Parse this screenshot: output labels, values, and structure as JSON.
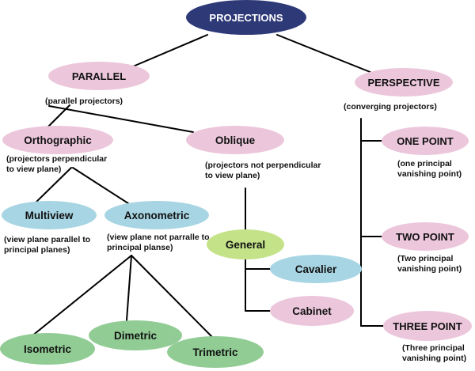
{
  "colors": {
    "root": "#2e3a78",
    "pink": "#ecc7dc",
    "blue": "#a7d5e3",
    "green": "#91cc95",
    "lime": "#c4e389",
    "text_dark": "#111111",
    "text_light": "#ffffff",
    "line": "#000000"
  },
  "nodes": {
    "root": {
      "label": "PROJECTIONS"
    },
    "parallel": {
      "label": "PARALLEL",
      "note": "(parallel projectors)"
    },
    "perspective": {
      "label": "PERSPECTIVE",
      "note": "(converging projectors)"
    },
    "orthographic": {
      "label": "Orthographic",
      "note": [
        "(projectors perpendicular",
        "to view plane)"
      ]
    },
    "oblique": {
      "label": "Oblique",
      "note": [
        "(projectors not perpendicular",
        "to view plane)"
      ]
    },
    "multiview": {
      "label": "Multiview",
      "note": [
        "(view plane parallel to",
        "principal planes)"
      ]
    },
    "axonometric": {
      "label": "Axonometric",
      "note": [
        "(view plane not parralle to",
        "principal planse)"
      ]
    },
    "general": {
      "label": "General"
    },
    "cavalier": {
      "label": "Cavalier"
    },
    "cabinet": {
      "label": "Cabinet"
    },
    "isometric": {
      "label": "Isometric"
    },
    "dimetric": {
      "label": "Dimetric"
    },
    "trimetric": {
      "label": "Trimetric"
    },
    "one_point": {
      "label": "ONE POINT",
      "note": [
        "(one principal",
        "vanishing point)"
      ]
    },
    "two_point": {
      "label": "TWO POINT",
      "note": [
        "(Two principal",
        "vanishing point)"
      ]
    },
    "three_point": {
      "label": "THREE POINT",
      "note": [
        "(Three principal",
        "vanishing point)"
      ]
    }
  }
}
